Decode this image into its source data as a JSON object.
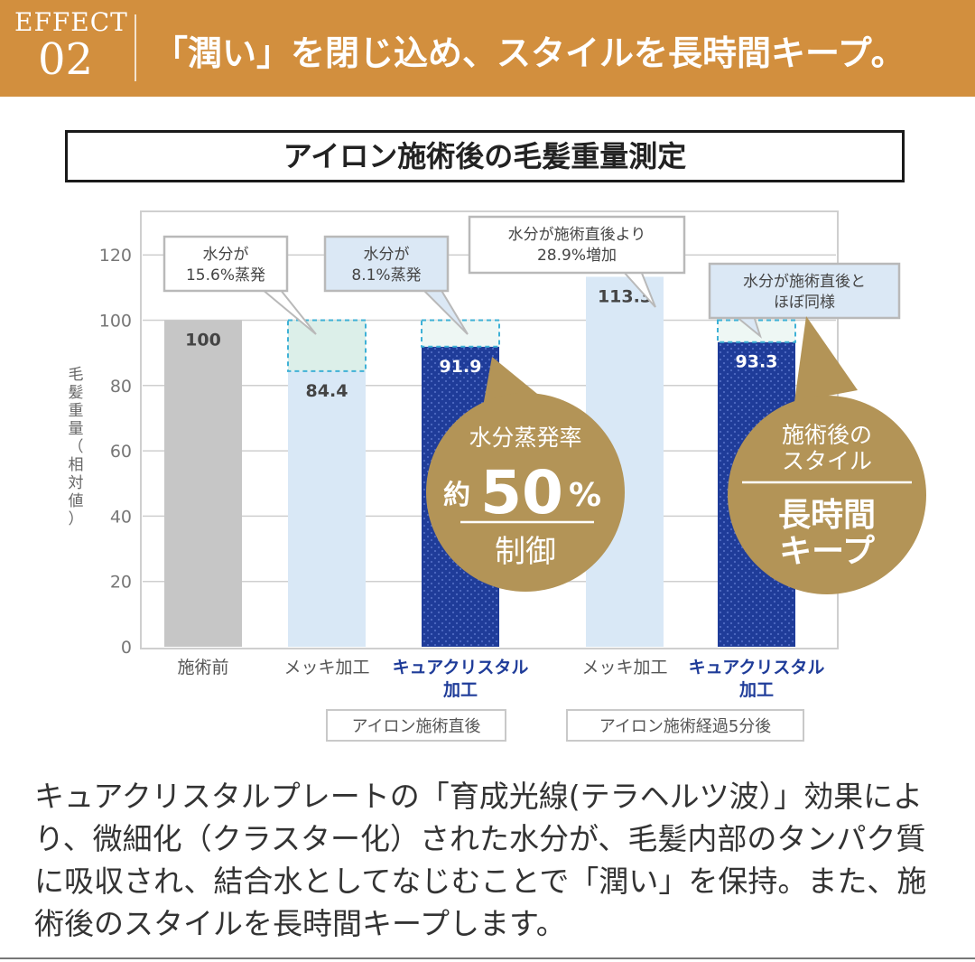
{
  "banner": {
    "effect_label": "EFFECT",
    "effect_number": "02",
    "headline": "「潤い」を閉じ込め、スタイルを長時間キープ。"
  },
  "colors": {
    "banner": "#d28f3e",
    "gold": "#b39457",
    "navy": "#1f3c99",
    "light_blue": "#d9e8f6",
    "gray": "#c6c6c6",
    "mint": "#dcefe9",
    "dashed": "#3fb1d6",
    "callout_blue_bg": "#dbe8f5"
  },
  "chart_data": {
    "type": "bar",
    "title": "アイロン施術後の毛髪重量測定",
    "ylabel": "毛髪重量（相対値）",
    "ylim": [
      0,
      130
    ],
    "yticks": [
      0,
      20,
      40,
      60,
      80,
      100,
      120
    ],
    "categories": [
      "施術前",
      "メッキ加工",
      "キュアクリスタル加工",
      "メッキ加工",
      "キュアクリスタル加工"
    ],
    "category_lines": [
      [
        "施術前"
      ],
      [
        "メッキ加工"
      ],
      [
        "キュアクリスタル",
        "加工"
      ],
      [
        "メッキ加工"
      ],
      [
        "キュアクリスタル",
        "加工"
      ]
    ],
    "highlight_categories": [
      2,
      4
    ],
    "values": [
      100,
      84.4,
      91.9,
      113.3,
      93.3
    ],
    "value_labels": [
      "100",
      "84.4",
      "91.9",
      "113.3",
      "93.3"
    ],
    "bar_styles": [
      "gray",
      "light",
      "navy",
      "light",
      "navy"
    ],
    "lost_from": 100,
    "groups": [
      {
        "label": "アイロン施術直後",
        "span": [
          1,
          2
        ]
      },
      {
        "label": "アイロン施術経過5分後",
        "span": [
          3,
          4
        ]
      }
    ],
    "callouts": [
      {
        "lines": [
          "水分が",
          "15.6%蒸発"
        ],
        "bar": 1,
        "style": "white"
      },
      {
        "lines": [
          "水分が",
          "8.1%蒸発"
        ],
        "bar": 2,
        "style": "blue"
      },
      {
        "lines": [
          "水分が施術直後より",
          "28.9%増加"
        ],
        "bar": 3,
        "style": "white"
      },
      {
        "lines": [
          "水分が施術直後と",
          "ほぼ同様"
        ],
        "bar": 4,
        "style": "blue"
      }
    ],
    "badges": [
      {
        "top": "水分蒸発率",
        "prefix": "約",
        "big": "50",
        "suffix": "%",
        "bottom": "制御"
      },
      {
        "lines": [
          "施術後の",
          "スタイル"
        ],
        "bottom_lines": [
          "長時間",
          "キープ"
        ]
      }
    ]
  },
  "description": "キュアクリスタルプレートの「育成光線(テラヘルツ波）」効果により、微細化（クラスター化）された水分が、毛髪内部のタンパク質に吸収され、結合水としてなじむことで「潤い」を保持。また、施術後のスタイルを長時間キープします。"
}
